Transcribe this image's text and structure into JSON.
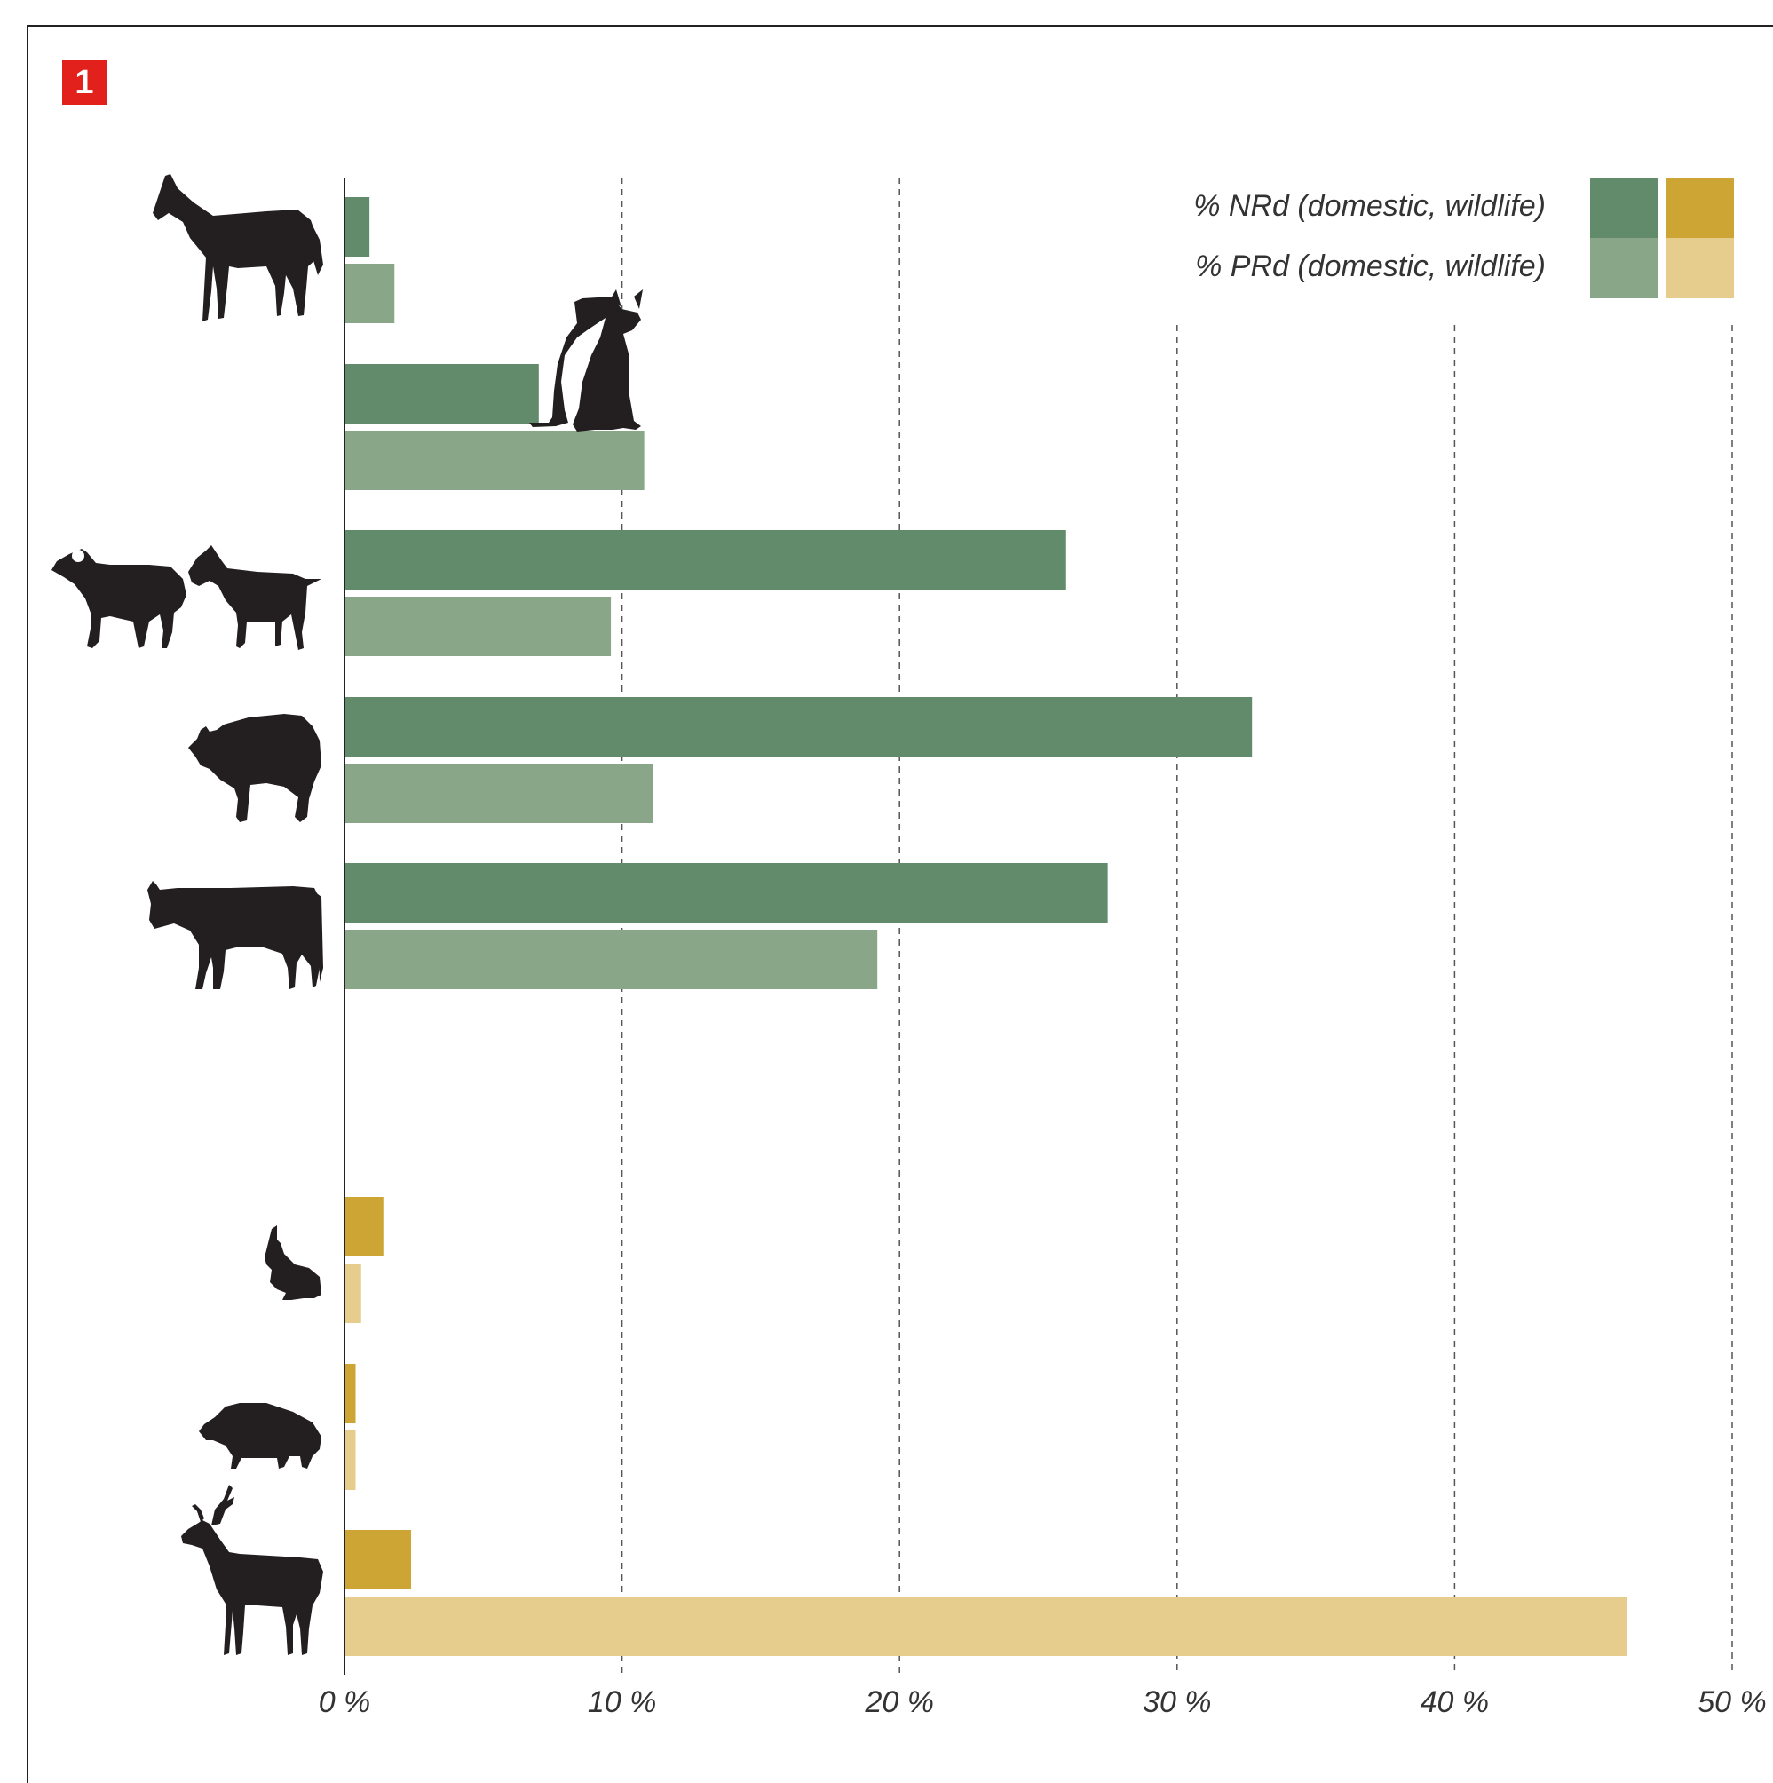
{
  "figure": {
    "badge_number": "1"
  },
  "chart_data": {
    "type": "bar",
    "orientation": "horizontal",
    "categories": [
      "horse",
      "dog",
      "sheep/goat",
      "pig",
      "cattle",
      "hare",
      "wild boar",
      "red deer"
    ],
    "groups": {
      "domestic": [
        "horse",
        "dog",
        "sheep/goat",
        "pig",
        "cattle"
      ],
      "wildlife": [
        "hare",
        "wild boar",
        "red deer"
      ]
    },
    "series": [
      {
        "name": "% NRd",
        "values": [
          0.9,
          7.0,
          26.0,
          32.7,
          27.5,
          1.4,
          0.4,
          2.4
        ]
      },
      {
        "name": "% PRd",
        "values": [
          1.8,
          10.8,
          9.6,
          11.1,
          19.2,
          0.6,
          0.4,
          46.2
        ]
      }
    ],
    "xlim": [
      0,
      50
    ],
    "xticks": [
      0,
      10,
      20,
      30,
      40,
      50
    ],
    "xtick_labels": [
      "0 %",
      "10 %",
      "20 %",
      "30 %",
      "40 %",
      "50 %"
    ],
    "grid": "vertical dashed",
    "legend": {
      "placement": "top-right",
      "labels": [
        "% NRd (domestic, wildlife)",
        "% PRd (domestic, wildlife)"
      ]
    },
    "colors": {
      "nrd_domestic": "#628b6c",
      "prd_domestic": "#89a688",
      "nrd_wildlife": "#cca535",
      "prd_wildlife": "#e6cd8e",
      "silhouette": "#231f20"
    },
    "icons": [
      "horse-icon",
      "dog-icon",
      "sheep-icon",
      "goat-icon",
      "pig-icon",
      "cattle-icon",
      "hare-icon",
      "wild-boar-icon",
      "red-deer-icon"
    ]
  }
}
